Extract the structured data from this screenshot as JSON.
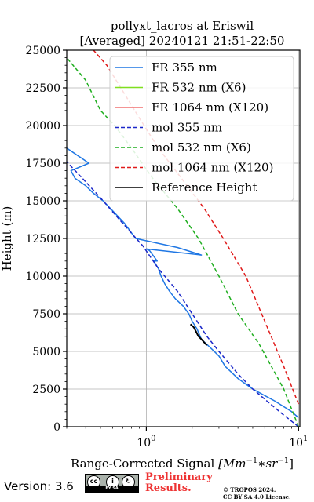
{
  "chart_data": {
    "type": "line",
    "title": [
      "pollyxt_lacros at Eriswil",
      "[Averaged] 20240121 21:51-22:50"
    ],
    "xlabel_main": "Range-Corrected Signal ",
    "xlabel_unit_base": "[Mm",
    "xlabel_unit_exp": "−1",
    "xlabel_unit_mid": "∗sr",
    "xlabel_unit_end": "]",
    "ylabel": "Height (m)",
    "x_scale": "log",
    "xlim": [
      0.3,
      10.2
    ],
    "ylim": [
      0,
      25000
    ],
    "grid": true,
    "legend_position": "top-right",
    "yticks": [
      0,
      2500,
      5000,
      7500,
      10000,
      12500,
      15000,
      17500,
      20000,
      22500,
      25000
    ],
    "yticklabels": [
      "0",
      "2500",
      "5000",
      "7500",
      "10000",
      "12500",
      "15000",
      "17500",
      "20000",
      "22500",
      "25000"
    ],
    "xticks": [
      {
        "base": "10",
        "exp": "0",
        "value": 1
      },
      {
        "base": "10",
        "exp": "1",
        "value": 10
      }
    ],
    "series": [
      {
        "name": "FR 355 nm",
        "color": "#1f77e4",
        "style": "solid",
        "x": [
          10.0,
          9.0,
          7.0,
          5.0,
          4.0,
          3.3,
          3.0,
          2.6,
          2.3,
          2.15,
          2.0,
          1.9,
          1.75,
          1.55,
          1.42,
          1.32,
          1.25,
          1.2,
          1.12,
          1.18,
          1.05,
          1.0,
          2.3,
          1.6,
          0.85,
          0.72,
          0.62,
          0.52,
          0.45,
          0.4,
          0.34,
          0.32,
          0.42,
          0.3
        ],
        "y": [
          600,
          1000,
          1700,
          2500,
          3200,
          4000,
          4700,
          5300,
          5800,
          6500,
          7000,
          7500,
          8000,
          8500,
          9000,
          9500,
          10000,
          10500,
          11000,
          11000,
          11700,
          11800,
          11400,
          11900,
          12500,
          13500,
          14200,
          15000,
          15500,
          16000,
          16500,
          17000,
          17500,
          18500
        ]
      },
      {
        "name": "FR 532 nm (X6)",
        "color": "#7fdf1f",
        "style": "solid",
        "x": [],
        "y": []
      },
      {
        "name": "FR 1064 nm (X120)",
        "color": "#f07070",
        "style": "solid",
        "x": [],
        "y": []
      },
      {
        "name": "mol 355 nm",
        "color": "#1a27c9",
        "style": "dashed",
        "x": [
          10.0,
          7.5,
          5.0,
          4.0,
          3.0,
          2.5,
          2.0,
          1.6,
          1.2,
          0.95,
          0.7,
          0.5,
          0.38,
          0.3
        ],
        "y": [
          0,
          1000,
          2500,
          3500,
          5000,
          6000,
          7500,
          9000,
          10500,
          12000,
          13500,
          15200,
          16500,
          17600
        ]
      },
      {
        "name": "mol 532 nm (X6)",
        "color": "#1fae1f",
        "style": "dashed",
        "x": [
          10.0,
          8.0,
          5.5,
          4.0,
          3.0,
          2.2,
          1.6,
          1.1,
          0.8,
          0.62,
          0.5,
          0.4,
          0.3
        ],
        "y": [
          0,
          2500,
          5500,
          7500,
          10000,
          12500,
          14500,
          16500,
          18500,
          20000,
          21000,
          23000,
          24500
        ]
      },
      {
        "name": "mol 1064 nm (X120)",
        "color": "#e01a1a",
        "style": "dashed",
        "x": [
          10.0,
          8.0,
          6.0,
          4.5,
          3.2,
          2.4,
          1.7,
          1.2,
          0.9,
          0.68,
          0.55,
          0.45
        ],
        "y": [
          1500,
          4000,
          7000,
          10000,
          12500,
          14500,
          16500,
          18500,
          20500,
          22500,
          24000,
          25000
        ]
      },
      {
        "name": "Reference Height",
        "color": "#000000",
        "style": "solid",
        "x": [
          1.95,
          2.05,
          2.1,
          2.15,
          2.2,
          2.3,
          2.4,
          2.5
        ],
        "y": [
          6800,
          6600,
          6400,
          6200,
          6000,
          5800,
          5600,
          5400
        ]
      }
    ]
  },
  "footer": {
    "version": "Version: 3.6",
    "cc_letters": "cc",
    "cc_by": "i",
    "cc_sa": "↻",
    "cc_text": "BY  SA",
    "preliminary_line1": "Preliminary",
    "preliminary_line2": "Results.",
    "copyright_line1": "© TROPOS 2024.",
    "copyright_line2": "CC BY SA 4.0 License."
  }
}
